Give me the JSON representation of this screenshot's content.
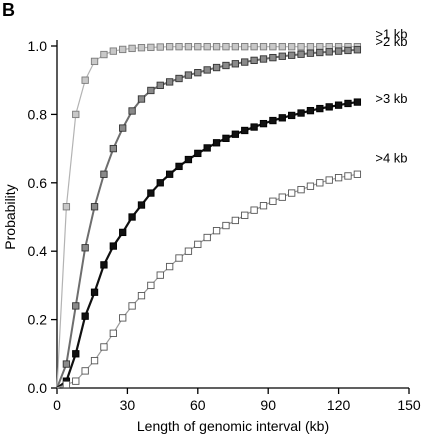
{
  "figure": {
    "panel_label": "B"
  },
  "chart_data": {
    "type": "line",
    "xlabel": "Length of genomic interval (kb)",
    "ylabel": "Probability",
    "xlim": [
      0,
      150
    ],
    "ylim": [
      0,
      1.0
    ],
    "xticks": [
      0,
      30,
      60,
      90,
      120,
      150
    ],
    "yticks": [
      0.0,
      0.2,
      0.4,
      0.6,
      0.8,
      1.0
    ],
    "xtick_labels": [
      "0",
      "30",
      "60",
      "90",
      "120",
      "150"
    ],
    "ytick_labels": [
      "0.0",
      "0.2",
      "0.4",
      "0.6",
      "0.8",
      "1.0"
    ],
    "grid": false,
    "legend": "labels at right end of each series",
    "series": [
      {
        "name": ">1 kb",
        "line_color": "#b3b3b3",
        "marker_fill": "#c8c8c8",
        "marker_stroke": "#7a7a7a",
        "line_width": 1.2,
        "x": [
          0,
          4,
          8,
          12,
          16,
          20,
          24,
          28,
          32,
          36,
          40,
          44,
          48,
          52,
          56,
          60,
          64,
          68,
          72,
          76,
          80,
          84,
          88,
          92,
          96,
          100,
          104,
          108,
          112,
          116,
          120,
          124,
          128
        ],
        "y": [
          0.0,
          0.53,
          0.8,
          0.9,
          0.955,
          0.975,
          0.985,
          0.99,
          0.993,
          0.995,
          0.996,
          0.997,
          0.998,
          0.998,
          0.998,
          0.998,
          0.998,
          0.998,
          0.998,
          0.998,
          0.998,
          0.998,
          0.998,
          0.998,
          0.998,
          0.998,
          0.998,
          0.998,
          0.998,
          0.998,
          0.998,
          0.998,
          0.998
        ]
      },
      {
        "name": ">2 kb",
        "line_color": "#6e6e6e",
        "marker_fill": "#8a8a8a",
        "marker_stroke": "#333333",
        "line_width": 2,
        "x": [
          0,
          4,
          8,
          12,
          16,
          20,
          24,
          28,
          32,
          36,
          40,
          44,
          48,
          52,
          56,
          60,
          64,
          68,
          72,
          76,
          80,
          84,
          88,
          92,
          96,
          100,
          104,
          108,
          112,
          116,
          120,
          124,
          128
        ],
        "y": [
          0.0,
          0.07,
          0.24,
          0.41,
          0.53,
          0.625,
          0.7,
          0.76,
          0.81,
          0.845,
          0.87,
          0.885,
          0.895,
          0.905,
          0.915,
          0.922,
          0.93,
          0.937,
          0.943,
          0.948,
          0.953,
          0.958,
          0.962,
          0.966,
          0.97,
          0.973,
          0.976,
          0.979,
          0.981,
          0.983,
          0.985,
          0.987,
          0.989
        ]
      },
      {
        "name": ">3 kb",
        "line_color": "#111111",
        "marker_fill": "#111111",
        "marker_stroke": "#000000",
        "line_width": 2.2,
        "x": [
          0,
          4,
          8,
          12,
          16,
          20,
          24,
          28,
          32,
          36,
          40,
          44,
          48,
          52,
          56,
          60,
          64,
          68,
          72,
          76,
          80,
          84,
          88,
          92,
          96,
          100,
          104,
          108,
          112,
          116,
          120,
          124,
          128
        ],
        "y": [
          0.0,
          0.02,
          0.1,
          0.21,
          0.28,
          0.36,
          0.415,
          0.455,
          0.5,
          0.535,
          0.57,
          0.6,
          0.625,
          0.648,
          0.668,
          0.686,
          0.702,
          0.717,
          0.73,
          0.742,
          0.753,
          0.763,
          0.773,
          0.782,
          0.79,
          0.797,
          0.804,
          0.811,
          0.817,
          0.822,
          0.827,
          0.832,
          0.836
        ]
      },
      {
        "name": ">4 kb",
        "line_color": "#9a9a9a",
        "marker_fill": "#ffffff",
        "marker_stroke": "#555555",
        "line_width": 1.2,
        "x": [
          0,
          4,
          8,
          12,
          16,
          20,
          24,
          28,
          32,
          36,
          40,
          44,
          48,
          52,
          56,
          60,
          64,
          68,
          72,
          76,
          80,
          84,
          88,
          92,
          96,
          100,
          104,
          108,
          112,
          116,
          120,
          124,
          128
        ],
        "y": [
          0.0,
          0.01,
          0.02,
          0.05,
          0.08,
          0.12,
          0.16,
          0.205,
          0.24,
          0.27,
          0.3,
          0.33,
          0.355,
          0.38,
          0.4,
          0.42,
          0.44,
          0.46,
          0.475,
          0.49,
          0.505,
          0.52,
          0.533,
          0.546,
          0.558,
          0.57,
          0.58,
          0.59,
          0.6,
          0.608,
          0.615,
          0.62,
          0.625
        ]
      }
    ]
  }
}
